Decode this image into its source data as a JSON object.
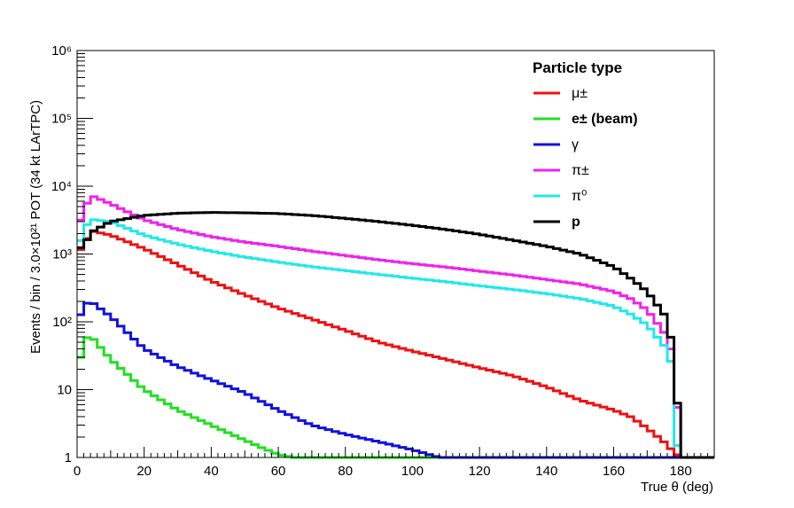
{
  "chart_data": {
    "type": "line",
    "title": "",
    "xlabel": "True θ (deg)",
    "ylabel": "Events / bin / 3.0×10²¹ POT (34 kt LArTPC)",
    "xlim": [
      0,
      190
    ],
    "ylim": [
      1,
      1000000
    ],
    "log_y": true,
    "grid": false,
    "legend_title": "Particle type",
    "legend_position": "top-right",
    "x_ticks": [
      0,
      20,
      40,
      60,
      80,
      100,
      120,
      140,
      160,
      180
    ],
    "y_ticks": [
      {
        "value": 1,
        "label": "1"
      },
      {
        "value": 10,
        "label": "10"
      },
      {
        "value": 100,
        "label": "10²"
      },
      {
        "value": 1000,
        "label": "10³"
      },
      {
        "value": 10000,
        "label": "10⁴"
      },
      {
        "value": 100000,
        "label": "10⁵"
      },
      {
        "value": 1000000,
        "label": "10⁶"
      }
    ],
    "series": [
      {
        "name": "μ±",
        "color": "#ee1111",
        "points": [
          [
            0,
            900
          ],
          [
            2,
            1500
          ],
          [
            5,
            2150
          ],
          [
            10,
            1900
          ],
          [
            20,
            1200
          ],
          [
            30,
            700
          ],
          [
            40,
            400
          ],
          [
            50,
            250
          ],
          [
            60,
            160
          ],
          [
            70,
            110
          ],
          [
            80,
            75
          ],
          [
            90,
            50
          ],
          [
            100,
            37
          ],
          [
            110,
            28
          ],
          [
            120,
            21
          ],
          [
            130,
            16
          ],
          [
            140,
            11
          ],
          [
            150,
            7
          ],
          [
            160,
            5
          ],
          [
            165,
            4
          ],
          [
            170,
            2.7
          ],
          [
            175,
            1.7
          ],
          [
            178,
            1.2
          ],
          [
            180,
            1
          ]
        ]
      },
      {
        "name": "e± (beam)",
        "color": "#22e022",
        "points": [
          [
            1,
            30
          ],
          [
            2,
            60
          ],
          [
            5,
            55
          ],
          [
            10,
            28
          ],
          [
            20,
            10
          ],
          [
            30,
            5
          ],
          [
            40,
            3
          ],
          [
            50,
            1.8
          ],
          [
            55,
            1.4
          ],
          [
            60,
            1.1
          ],
          [
            65,
            1
          ]
        ]
      },
      {
        "name": "γ",
        "color": "#1111dd",
        "points": [
          [
            0,
            85
          ],
          [
            2,
            190
          ],
          [
            5,
            185
          ],
          [
            10,
            120
          ],
          [
            20,
            40
          ],
          [
            30,
            22
          ],
          [
            40,
            14
          ],
          [
            50,
            9
          ],
          [
            60,
            5
          ],
          [
            70,
            3
          ],
          [
            80,
            2.2
          ],
          [
            90,
            1.7
          ],
          [
            100,
            1.3
          ],
          [
            108,
            1
          ]
        ]
      },
      {
        "name": "π±",
        "color": "#ee22ee",
        "points": [
          [
            0,
            2000
          ],
          [
            2,
            5000
          ],
          [
            5,
            7000
          ],
          [
            10,
            5500
          ],
          [
            20,
            3200
          ],
          [
            30,
            2300
          ],
          [
            40,
            1800
          ],
          [
            50,
            1500
          ],
          [
            60,
            1300
          ],
          [
            70,
            1100
          ],
          [
            80,
            950
          ],
          [
            90,
            820
          ],
          [
            100,
            720
          ],
          [
            110,
            640
          ],
          [
            120,
            560
          ],
          [
            130,
            490
          ],
          [
            140,
            420
          ],
          [
            150,
            360
          ],
          [
            160,
            280
          ],
          [
            165,
            220
          ],
          [
            170,
            150
          ],
          [
            175,
            70
          ],
          [
            178,
            30
          ],
          [
            180,
            1
          ]
        ]
      },
      {
        "name": "π⁰",
        "color": "#22e8e8",
        "points": [
          [
            0,
            1000
          ],
          [
            2,
            2500
          ],
          [
            5,
            3200
          ],
          [
            10,
            3000
          ],
          [
            20,
            1900
          ],
          [
            30,
            1400
          ],
          [
            40,
            1100
          ],
          [
            50,
            900
          ],
          [
            60,
            760
          ],
          [
            70,
            650
          ],
          [
            80,
            570
          ],
          [
            90,
            500
          ],
          [
            100,
            440
          ],
          [
            110,
            390
          ],
          [
            120,
            340
          ],
          [
            130,
            300
          ],
          [
            140,
            260
          ],
          [
            150,
            220
          ],
          [
            160,
            170
          ],
          [
            165,
            130
          ],
          [
            170,
            90
          ],
          [
            175,
            45
          ],
          [
            178,
            20
          ],
          [
            179,
            1.5
          ],
          [
            180,
            1
          ]
        ]
      },
      {
        "name": "p",
        "color": "#000000",
        "points": [
          [
            0,
            1100
          ],
          [
            2,
            1400
          ],
          [
            5,
            2200
          ],
          [
            10,
            3000
          ],
          [
            20,
            3700
          ],
          [
            30,
            4000
          ],
          [
            40,
            4100
          ],
          [
            50,
            4050
          ],
          [
            60,
            3950
          ],
          [
            70,
            3700
          ],
          [
            80,
            3350
          ],
          [
            90,
            3000
          ],
          [
            100,
            2650
          ],
          [
            110,
            2300
          ],
          [
            120,
            1950
          ],
          [
            130,
            1600
          ],
          [
            140,
            1300
          ],
          [
            150,
            1000
          ],
          [
            160,
            650
          ],
          [
            165,
            440
          ],
          [
            170,
            280
          ],
          [
            175,
            130
          ],
          [
            178,
            40
          ],
          [
            180,
            1
          ]
        ]
      }
    ]
  }
}
